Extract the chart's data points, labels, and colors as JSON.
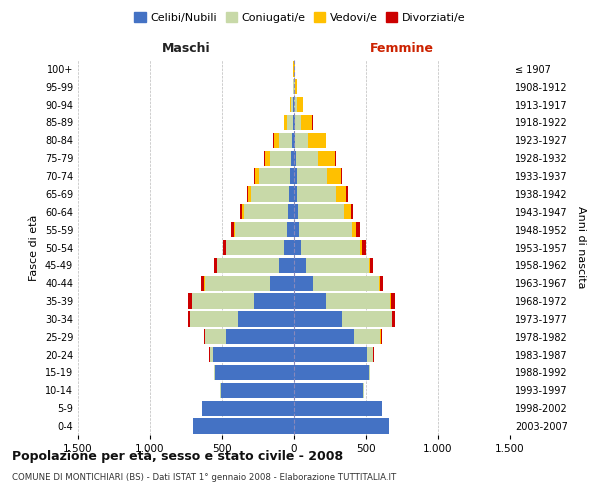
{
  "age_groups": [
    "0-4",
    "5-9",
    "10-14",
    "15-19",
    "20-24",
    "25-29",
    "30-34",
    "35-39",
    "40-44",
    "45-49",
    "50-54",
    "55-59",
    "60-64",
    "65-69",
    "70-74",
    "75-79",
    "80-84",
    "85-89",
    "90-94",
    "95-99",
    "100+"
  ],
  "birth_years": [
    "2003-2007",
    "1998-2002",
    "1993-1997",
    "1988-1992",
    "1983-1987",
    "1978-1982",
    "1973-1977",
    "1968-1972",
    "1963-1967",
    "1958-1962",
    "1953-1957",
    "1948-1952",
    "1943-1947",
    "1938-1942",
    "1933-1937",
    "1928-1932",
    "1923-1927",
    "1918-1922",
    "1913-1917",
    "1908-1912",
    "≤ 1907"
  ],
  "male": {
    "celibe": [
      700,
      640,
      510,
      550,
      560,
      470,
      390,
      280,
      170,
      105,
      70,
      50,
      40,
      32,
      25,
      18,
      12,
      7,
      4,
      2,
      1
    ],
    "coniugato": [
      1,
      2,
      3,
      5,
      25,
      150,
      330,
      430,
      450,
      430,
      400,
      360,
      310,
      270,
      215,
      150,
      90,
      42,
      15,
      5,
      2
    ],
    "vedovo": [
      0,
      0,
      0,
      0,
      0,
      0,
      1,
      1,
      2,
      3,
      5,
      8,
      10,
      15,
      28,
      35,
      38,
      20,
      8,
      3,
      1
    ],
    "divorziato": [
      0,
      0,
      0,
      1,
      2,
      5,
      15,
      22,
      22,
      18,
      20,
      22,
      18,
      12,
      8,
      5,
      3,
      2,
      0,
      0,
      0
    ]
  },
  "female": {
    "nubile": [
      660,
      610,
      480,
      520,
      510,
      420,
      330,
      220,
      130,
      80,
      50,
      35,
      28,
      22,
      18,
      14,
      9,
      5,
      3,
      2,
      1
    ],
    "coniugata": [
      1,
      2,
      3,
      8,
      40,
      180,
      350,
      450,
      460,
      440,
      410,
      370,
      320,
      270,
      210,
      150,
      90,
      42,
      15,
      6,
      2
    ],
    "vedova": [
      0,
      0,
      0,
      0,
      0,
      1,
      2,
      3,
      5,
      10,
      15,
      25,
      45,
      70,
      95,
      120,
      120,
      80,
      42,
      16,
      6
    ],
    "divorziata": [
      0,
      0,
      0,
      1,
      3,
      8,
      18,
      28,
      25,
      22,
      28,
      28,
      20,
      12,
      8,
      5,
      3,
      2,
      0,
      0,
      0
    ]
  },
  "colors": {
    "celibe": "#4472c4",
    "coniugato": "#c8d9a8",
    "vedovo": "#ffc000",
    "divorziato": "#cc0000"
  },
  "legend_labels": [
    "Celibi/Nubili",
    "Coniugati/e",
    "Vedovi/e",
    "Divorziati/e"
  ],
  "title": "Popolazione per età, sesso e stato civile - 2008",
  "subtitle": "COMUNE DI MONTICHIARI (BS) - Dati ISTAT 1° gennaio 2008 - Elaborazione TUTTITALIA.IT",
  "label_maschi": "Maschi",
  "label_femmine": "Femmine",
  "ylabel_left": "Fasce di età",
  "ylabel_right": "Anni di nascita",
  "xlim": 1500,
  "bg_color": "#ffffff",
  "grid_color": "#bbbbbb"
}
